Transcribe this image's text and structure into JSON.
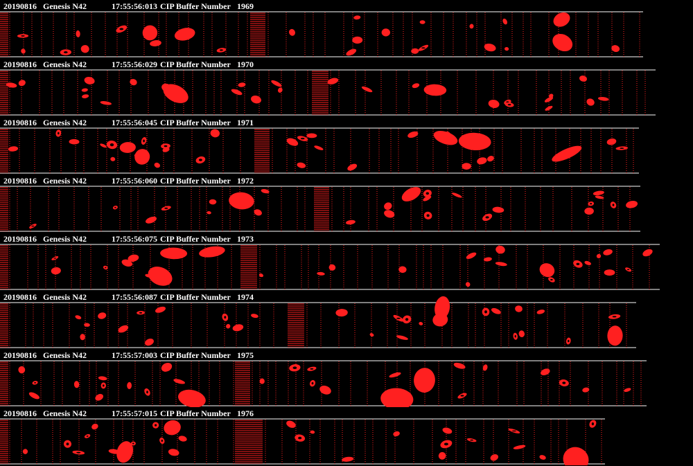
{
  "colors": {
    "background": "#000000",
    "particle": "#ff2020",
    "header_text": "#ffffff",
    "frame_line": "#ffffff"
  },
  "buffers": [
    {
      "date": "20190816",
      "probe": "Genesis N42",
      "time": "17:55:56:013",
      "label": "CIP Buffer Number",
      "number": "1969"
    },
    {
      "date": "20190816",
      "probe": "Genesis N42",
      "time": "17:55:56:029",
      "label": "CIP Buffer Number",
      "number": "1970"
    },
    {
      "date": "20190816",
      "probe": "Genesis N42",
      "time": "17:55:56:045",
      "label": "CIP Buffer Number",
      "number": "1971"
    },
    {
      "date": "20190816",
      "probe": "Genesis N42",
      "time": "17:55:56:060",
      "label": "CIP Buffer Number",
      "number": "1972"
    },
    {
      "date": "20190816",
      "probe": "Genesis N42",
      "time": "17:55:56:075",
      "label": "CIP Buffer Number",
      "number": "1973"
    },
    {
      "date": "20190816",
      "probe": "Genesis N42",
      "time": "17:55:56:087",
      "label": "CIP Buffer Number",
      "number": "1974"
    },
    {
      "date": "20190816",
      "probe": "Genesis N42",
      "time": "17:55:57:003",
      "label": "CIP Buffer Number",
      "number": "1975"
    },
    {
      "date": "20190816",
      "probe": "Genesis N42",
      "time": "17:55:57:015",
      "label": "CIP Buffer Number",
      "number": "1976"
    }
  ]
}
